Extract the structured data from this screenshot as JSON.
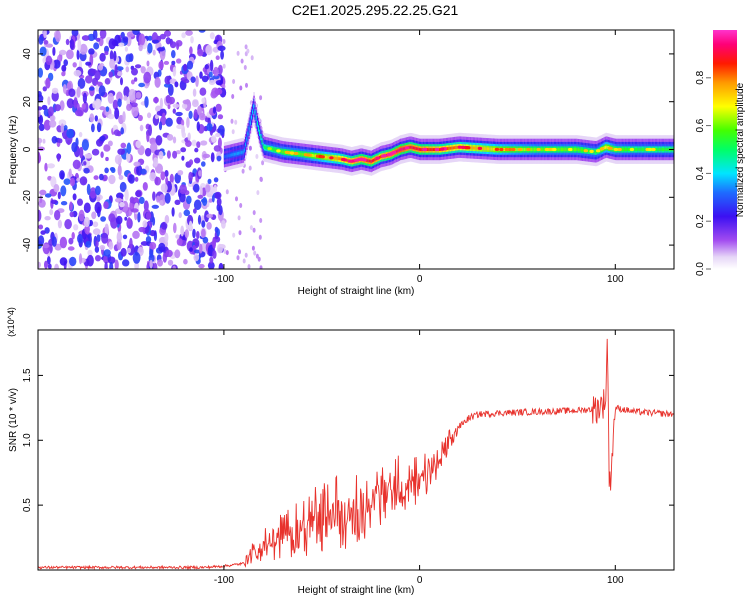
{
  "figure_title": "C2E1.2025.295.22.25.G21",
  "chart_data": [
    {
      "type": "heatmap",
      "xlabel": "Height of straight line (km)",
      "ylabel": "Frequency (Hz)",
      "xlim": [
        -195,
        130
      ],
      "ylim": [
        -50,
        50
      ],
      "xticks": [
        -100,
        0,
        100
      ],
      "yticks": [
        -40,
        -20,
        0,
        20,
        40
      ],
      "colorbar": {
        "label": "Normalized spectral amplitude",
        "range": [
          0.0,
          1.0
        ],
        "ticks": [
          0.0,
          0.2,
          0.4,
          0.6,
          0.8
        ],
        "tick_labels": [
          "0.0",
          "0.2",
          "0.4",
          "0.6",
          "0.8"
        ],
        "colormap": "rainbow (white-violet-blue-cyan-green-yellow-red-magenta)"
      },
      "signal_track": {
        "x": [
          -100,
          -95,
          -90,
          -85,
          -83,
          -80,
          -75,
          -70,
          -60,
          -50,
          -40,
          -35,
          -30,
          -25,
          -20,
          -15,
          -10,
          -5,
          0,
          10,
          20,
          40,
          60,
          80,
          90,
          95,
          100,
          110,
          120,
          130
        ],
        "frequency": [
          -3,
          -2,
          -1,
          18,
          10,
          1,
          0,
          -1,
          -2,
          -3,
          -4,
          -5,
          -4,
          -5,
          -3,
          -2,
          0,
          1,
          0,
          0,
          1,
          0,
          0,
          0,
          -1,
          1,
          0,
          0,
          0,
          0
        ],
        "peak_amplitude": [
          0.3,
          0.35,
          0.35,
          0.4,
          0.45,
          0.5,
          0.55,
          0.6,
          0.6,
          0.7,
          0.8,
          0.85,
          0.9,
          0.9,
          0.85,
          0.9,
          0.95,
          0.9,
          0.9,
          0.85,
          0.8,
          0.7,
          0.6,
          0.6,
          0.55,
          0.7,
          0.6,
          0.55,
          0.55,
          0.55
        ]
      },
      "noise_region": {
        "x_range": [
          -195,
          -100
        ],
        "frequency_range": [
          -50,
          50
        ],
        "amplitude_range": [
          0.05,
          0.3
        ]
      }
    },
    {
      "type": "line",
      "xlabel": "Height of straight line (km)",
      "ylabel": "SNR (10 * v/v)",
      "y_multiplier": "(x10^4)",
      "xlim": [
        -195,
        130
      ],
      "ylim": [
        0,
        1.85
      ],
      "xticks": [
        -100,
        0,
        100
      ],
      "yticks": [
        0.5,
        1.0,
        1.5
      ],
      "ytick_labels": [
        "0.5",
        "1.0",
        "1.5"
      ],
      "series": [
        {
          "color": "#e8322c",
          "x": [
            -195,
            -150,
            -110,
            -100,
            -90,
            -85,
            -80,
            -70,
            -60,
            -50,
            -40,
            -30,
            -20,
            -10,
            0,
            5,
            10,
            15,
            20,
            25,
            30,
            40,
            60,
            80,
            90,
            95,
            96,
            97,
            100,
            110,
            120,
            130
          ],
          "y": [
            0.02,
            0.02,
            0.02,
            0.03,
            0.05,
            0.1,
            0.15,
            0.2,
            0.25,
            0.3,
            0.35,
            0.4,
            0.5,
            0.58,
            0.63,
            0.7,
            0.8,
            0.95,
            1.1,
            1.17,
            1.2,
            1.21,
            1.22,
            1.23,
            1.24,
            1.3,
            1.8,
            0.6,
            1.25,
            1.22,
            1.21,
            1.2
          ]
        }
      ]
    }
  ]
}
